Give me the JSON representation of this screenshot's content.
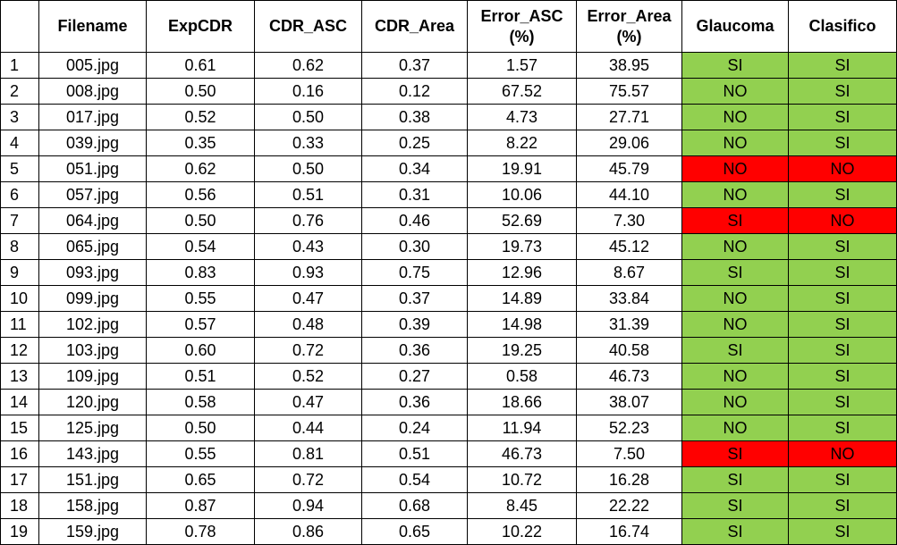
{
  "columns": [
    "",
    "Filename",
    "ExpCDR",
    "CDR_ASC",
    "CDR_Area",
    "Error_ASC (%)",
    "Error_Area (%)",
    "Glaucoma",
    "Clasifico"
  ],
  "colors": {
    "ok": "#92d050",
    "fail": "#ff0000"
  },
  "rows": [
    [
      "1",
      "005.jpg",
      "0.61",
      "0.62",
      "0.37",
      "1.57",
      "38.95",
      "SI",
      "SI",
      "ok"
    ],
    [
      "2",
      "008.jpg",
      "0.50",
      "0.16",
      "0.12",
      "67.52",
      "75.57",
      "NO",
      "SI",
      "ok"
    ],
    [
      "3",
      "017.jpg",
      "0.52",
      "0.50",
      "0.38",
      "4.73",
      "27.71",
      "NO",
      "SI",
      "ok"
    ],
    [
      "4",
      "039.jpg",
      "0.35",
      "0.33",
      "0.25",
      "8.22",
      "29.06",
      "NO",
      "SI",
      "ok"
    ],
    [
      "5",
      "051.jpg",
      "0.62",
      "0.50",
      "0.34",
      "19.91",
      "45.79",
      "NO",
      "NO",
      "fail"
    ],
    [
      "6",
      "057.jpg",
      "0.56",
      "0.51",
      "0.31",
      "10.06",
      "44.10",
      "NO",
      "SI",
      "ok"
    ],
    [
      "7",
      "064.jpg",
      "0.50",
      "0.76",
      "0.46",
      "52.69",
      "7.30",
      "SI",
      "NO",
      "fail"
    ],
    [
      "8",
      "065.jpg",
      "0.54",
      "0.43",
      "0.30",
      "19.73",
      "45.12",
      "NO",
      "SI",
      "ok"
    ],
    [
      "9",
      "093.jpg",
      "0.83",
      "0.93",
      "0.75",
      "12.96",
      "8.67",
      "SI",
      "SI",
      "ok"
    ],
    [
      "10",
      "099.jpg",
      "0.55",
      "0.47",
      "0.37",
      "14.89",
      "33.84",
      "NO",
      "SI",
      "ok"
    ],
    [
      "11",
      "102.jpg",
      "0.57",
      "0.48",
      "0.39",
      "14.98",
      "31.39",
      "NO",
      "SI",
      "ok"
    ],
    [
      "12",
      "103.jpg",
      "0.60",
      "0.72",
      "0.36",
      "19.25",
      "40.58",
      "SI",
      "SI",
      "ok"
    ],
    [
      "13",
      "109.jpg",
      "0.51",
      "0.52",
      "0.27",
      "0.58",
      "46.73",
      "NO",
      "SI",
      "ok"
    ],
    [
      "14",
      "120.jpg",
      "0.58",
      "0.47",
      "0.36",
      "18.66",
      "38.07",
      "NO",
      "SI",
      "ok"
    ],
    [
      "15",
      "125.jpg",
      "0.50",
      "0.44",
      "0.24",
      "11.94",
      "52.23",
      "NO",
      "SI",
      "ok"
    ],
    [
      "16",
      "143.jpg",
      "0.55",
      "0.81",
      "0.51",
      "46.73",
      "7.50",
      "SI",
      "NO",
      "fail"
    ],
    [
      "17",
      "151.jpg",
      "0.65",
      "0.72",
      "0.54",
      "10.72",
      "16.28",
      "SI",
      "SI",
      "ok"
    ],
    [
      "18",
      "158.jpg",
      "0.87",
      "0.94",
      "0.68",
      "8.45",
      "22.22",
      "SI",
      "SI",
      "ok"
    ],
    [
      "19",
      "159.jpg",
      "0.78",
      "0.86",
      "0.65",
      "10.22",
      "16.74",
      "SI",
      "SI",
      "ok"
    ]
  ]
}
